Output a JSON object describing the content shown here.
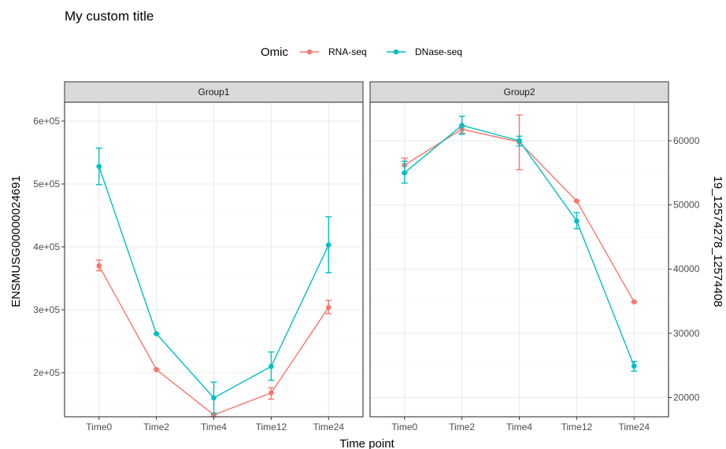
{
  "chart_data": {
    "type": "line",
    "title": "My custom title",
    "legend": {
      "title": "Omic",
      "position": "top"
    },
    "xlabel": "Time point",
    "categories": [
      "Time0",
      "Time2",
      "Time4",
      "Time12",
      "Time24"
    ],
    "series_styles": [
      {
        "name": "RNA-seq",
        "color": "#F8766D"
      },
      {
        "name": "DNase-seq",
        "color": "#00BFC4"
      }
    ],
    "panels": [
      {
        "strip": "Group1",
        "ylabel": "ENSMUSG00000024691",
        "ylim": [
          130000,
          630000
        ],
        "yticks": [
          200000,
          300000,
          400000,
          500000,
          600000
        ],
        "ytick_labels": [
          "2e+05",
          "3e+05",
          "4e+05",
          "5e+05",
          "6e+05"
        ],
        "series": [
          {
            "name": "RNA-seq",
            "values": [
              370000,
              205000,
              133000,
              168000,
              304000
            ],
            "err_low": [
              362000,
              205000,
              130000,
              158000,
              294000
            ],
            "err_high": [
              379000,
              205000,
              136000,
              176000,
              315000
            ]
          },
          {
            "name": "DNase-seq",
            "values": [
              528000,
              262000,
              160000,
              210000,
              403000
            ],
            "err_low": [
              499000,
              262000,
              135000,
              188000,
              359000
            ],
            "err_high": [
              557000,
              262000,
              185000,
              233000,
              448000
            ]
          }
        ]
      },
      {
        "strip": "Group2",
        "ylabel": "19_12574278_12574408",
        "ylim": [
          17000,
          66000
        ],
        "yticks": [
          20000,
          30000,
          40000,
          50000,
          60000
        ],
        "ytick_labels": [
          "20000",
          "30000",
          "40000",
          "50000",
          "60000"
        ],
        "series": [
          {
            "name": "RNA-seq",
            "values": [
              56200,
              61800,
              59800,
              50600,
              34900
            ],
            "err_low": [
              55000,
              61200,
              55500,
              50600,
              34900
            ],
            "err_high": [
              57300,
              62400,
              64000,
              50600,
              34900
            ]
          },
          {
            "name": "DNase-seq",
            "values": [
              55000,
              62400,
              60000,
              47500,
              24900
            ],
            "err_low": [
              53400,
              61000,
              59200,
              46300,
              24100
            ],
            "err_high": [
              56800,
              63800,
              60700,
              48800,
              25600
            ]
          }
        ]
      }
    ]
  }
}
